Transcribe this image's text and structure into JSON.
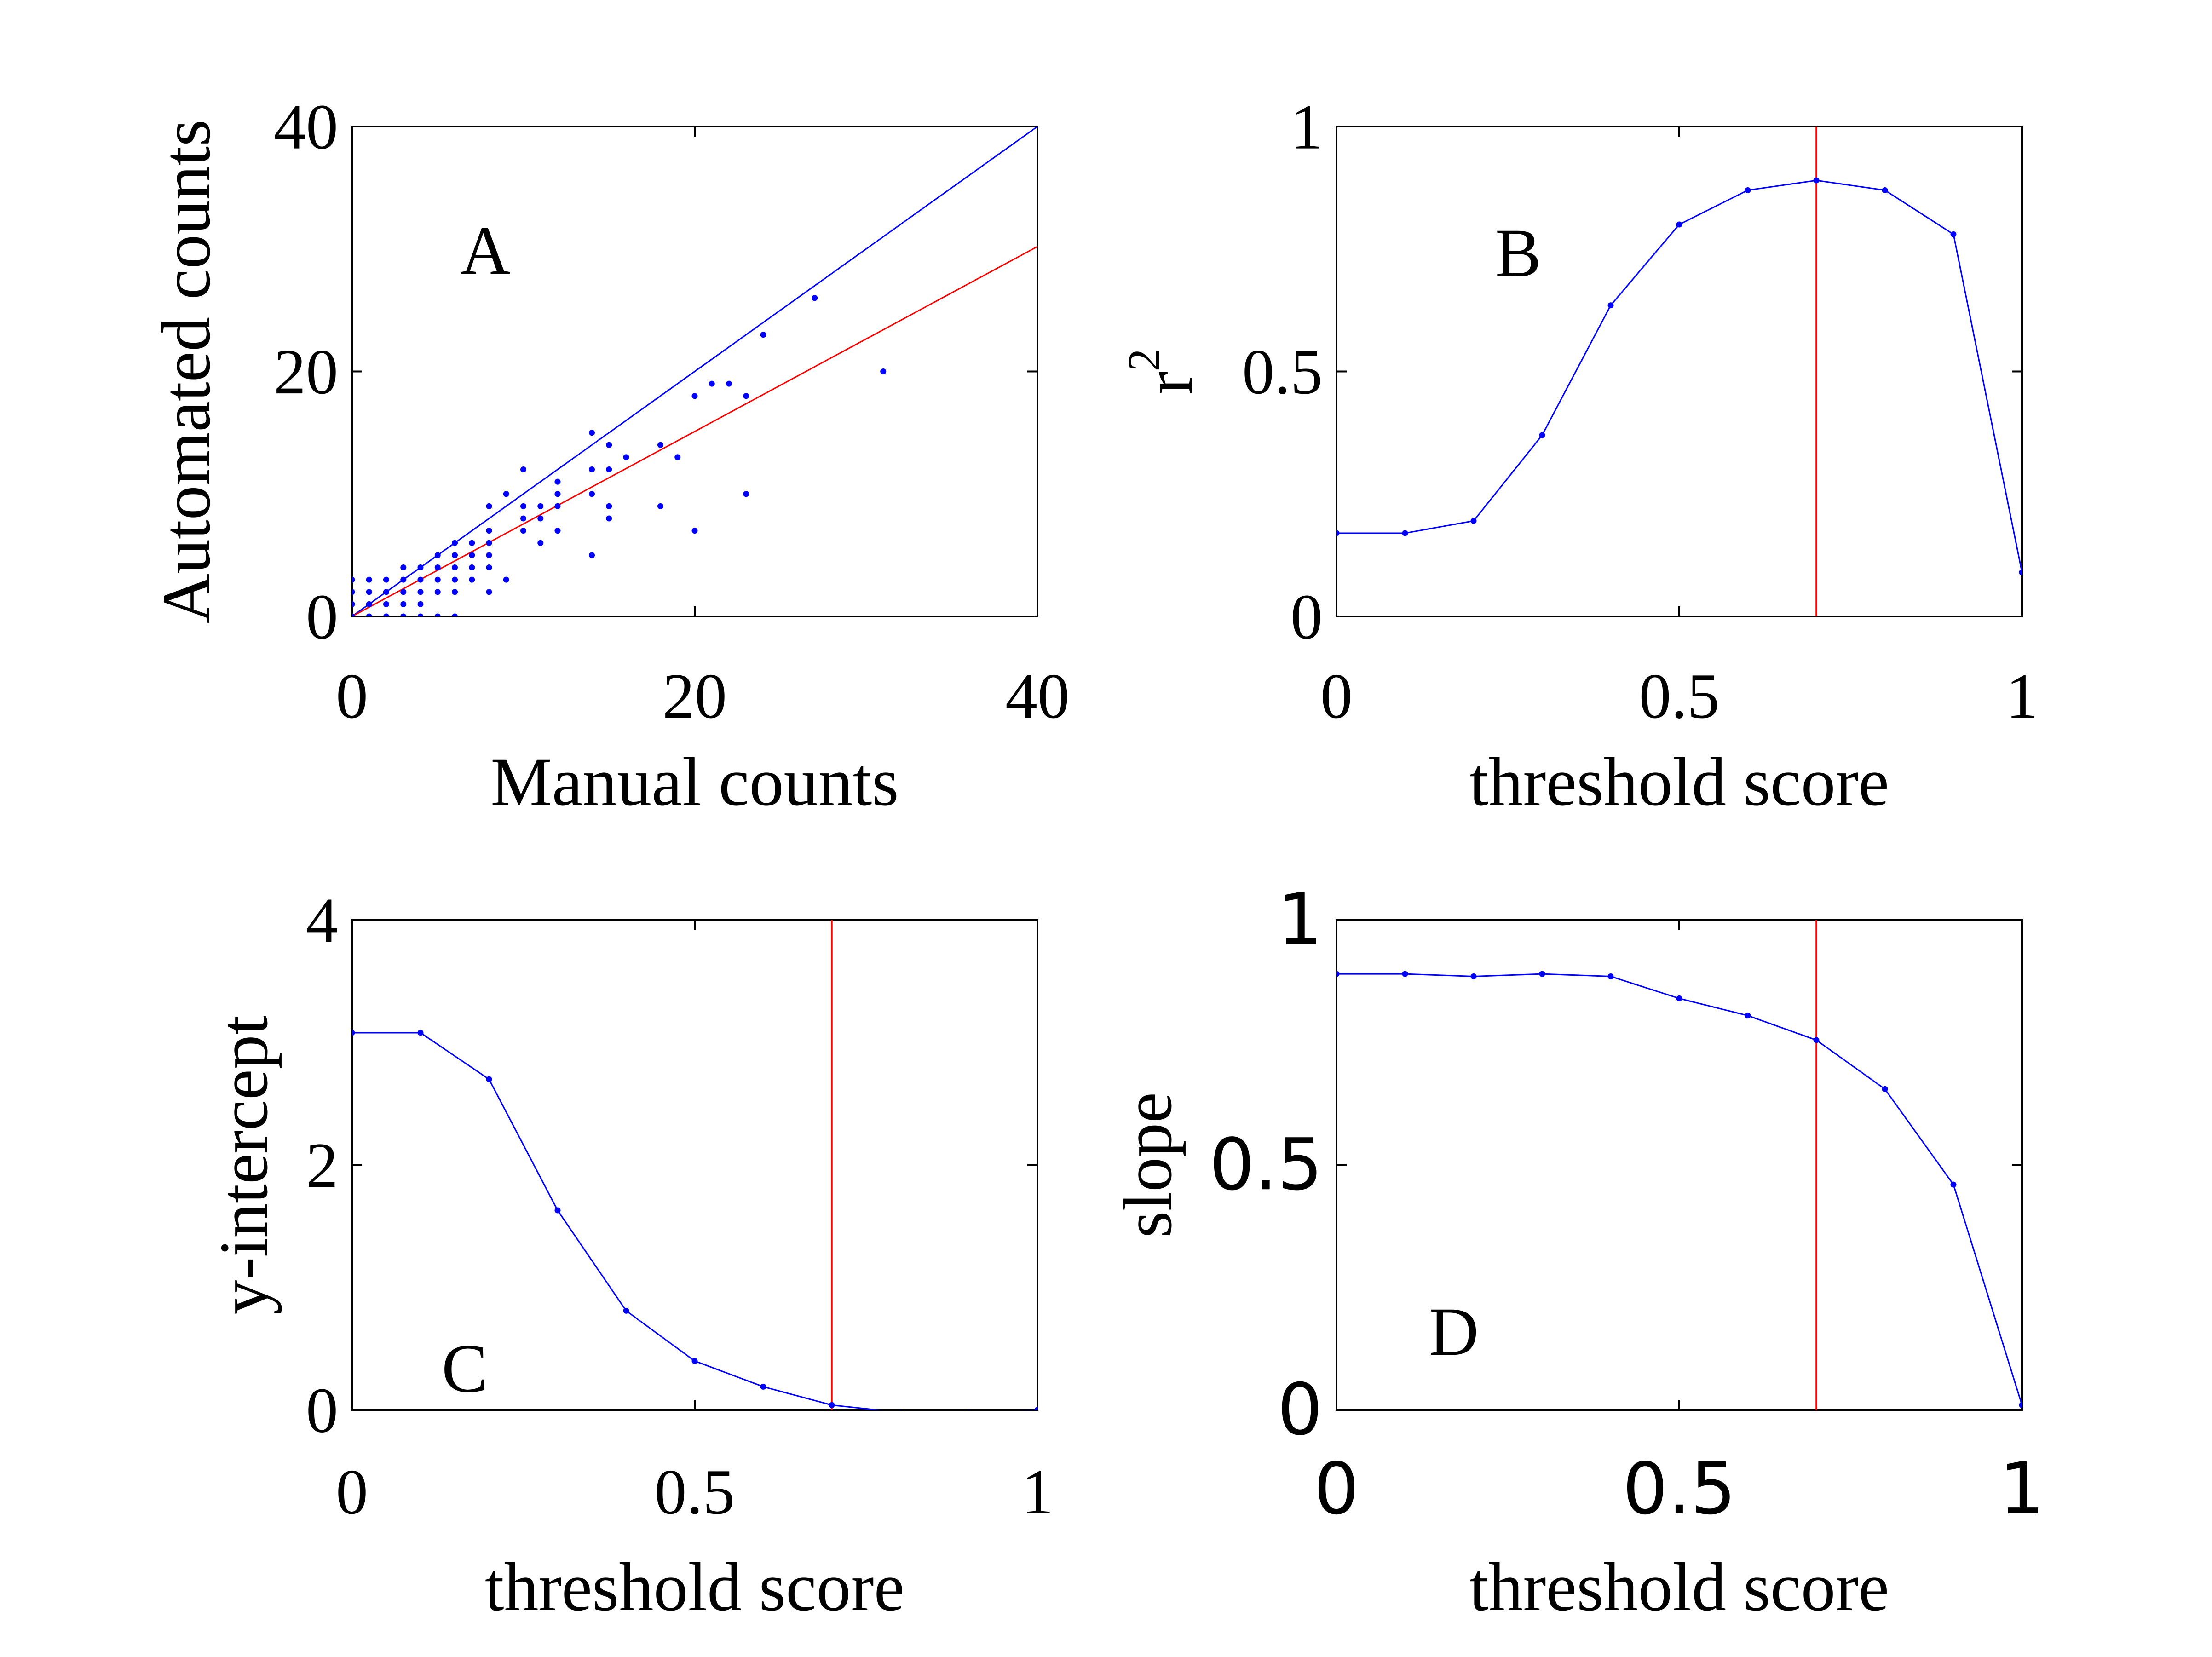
{
  "chart_data": [
    {
      "panel": "A",
      "type": "scatter",
      "panel_label": "A",
      "xlabel": "Manual counts",
      "ylabel": "Automated counts",
      "xlim": [
        0,
        40
      ],
      "ylim": [
        0,
        40
      ],
      "xticks": [
        "0",
        "20",
        "40"
      ],
      "yticks": [
        "0",
        "20",
        "40"
      ],
      "grid": false,
      "points": [
        [
          0,
          0
        ],
        [
          0,
          1
        ],
        [
          0,
          2
        ],
        [
          0,
          3
        ],
        [
          1,
          0
        ],
        [
          1,
          1
        ],
        [
          1,
          2
        ],
        [
          1,
          3
        ],
        [
          2,
          0
        ],
        [
          2,
          1
        ],
        [
          2,
          2
        ],
        [
          2,
          3
        ],
        [
          3,
          0
        ],
        [
          3,
          1
        ],
        [
          3,
          2
        ],
        [
          3,
          3
        ],
        [
          3,
          4
        ],
        [
          4,
          0
        ],
        [
          4,
          1
        ],
        [
          4,
          2
        ],
        [
          4,
          3
        ],
        [
          4,
          4
        ],
        [
          5,
          0
        ],
        [
          5,
          2
        ],
        [
          5,
          3
        ],
        [
          5,
          4
        ],
        [
          5,
          5
        ],
        [
          6,
          0
        ],
        [
          6,
          2
        ],
        [
          6,
          3
        ],
        [
          6,
          4
        ],
        [
          6,
          5
        ],
        [
          6,
          6
        ],
        [
          7,
          3
        ],
        [
          7,
          4
        ],
        [
          7,
          5
        ],
        [
          7,
          6
        ],
        [
          8,
          2
        ],
        [
          8,
          4
        ],
        [
          8,
          5
        ],
        [
          8,
          6
        ],
        [
          8,
          7
        ],
        [
          8,
          9
        ],
        [
          9,
          3
        ],
        [
          9,
          10
        ],
        [
          10,
          7
        ],
        [
          10,
          8
        ],
        [
          10,
          9
        ],
        [
          10,
          12
        ],
        [
          11,
          6
        ],
        [
          11,
          8
        ],
        [
          11,
          9
        ],
        [
          12,
          7
        ],
        [
          12,
          9
        ],
        [
          12,
          10
        ],
        [
          12,
          11
        ],
        [
          14,
          5
        ],
        [
          14,
          10
        ],
        [
          14,
          12
        ],
        [
          14,
          15
        ],
        [
          15,
          8
        ],
        [
          15,
          9
        ],
        [
          15,
          12
        ],
        [
          15,
          14
        ],
        [
          16,
          13
        ],
        [
          18,
          9
        ],
        [
          18,
          14
        ],
        [
          19,
          13
        ],
        [
          20,
          7
        ],
        [
          20,
          18
        ],
        [
          21,
          19
        ],
        [
          22,
          19
        ],
        [
          23,
          10
        ],
        [
          23,
          18
        ],
        [
          24,
          23
        ],
        [
          27,
          26
        ],
        [
          31,
          20
        ]
      ],
      "lines": [
        {
          "name": "",
          "color": "#0000ff",
          "x": [
            0,
            40
          ],
          "y": [
            0,
            40
          ]
        },
        {
          "name": "",
          "color": "#ff0000",
          "x": [
            0,
            40
          ],
          "y": [
            0,
            30.2
          ]
        }
      ]
    },
    {
      "panel": "B",
      "type": "line",
      "panel_label": "B",
      "xlabel": "threshold score",
      "ylabel": "r",
      "ylabel_sup": "2",
      "xlim": [
        0,
        1
      ],
      "ylim": [
        0,
        1
      ],
      "xticks": [
        "0",
        "0.5",
        "1"
      ],
      "yticks": [
        "0",
        "0.5",
        "1"
      ],
      "grid": false,
      "x": [
        0,
        0.1,
        0.2,
        0.3,
        0.4,
        0.5,
        0.6,
        0.7,
        0.8,
        0.9,
        1.0
      ],
      "y": [
        0.17,
        0.17,
        0.195,
        0.37,
        0.635,
        0.8,
        0.87,
        0.89,
        0.87,
        0.78,
        0.09
      ],
      "series_color": "#0000ff",
      "vline": {
        "x": 0.7,
        "color": "#ff0000"
      }
    },
    {
      "panel": "C",
      "type": "line",
      "panel_label": "C",
      "xlabel": "threshold score",
      "ylabel": "y-intercept",
      "xlim": [
        0,
        1
      ],
      "ylim": [
        0,
        4
      ],
      "xticks": [
        "0",
        "0.5",
        "1"
      ],
      "yticks": [
        "0",
        "2",
        "4"
      ],
      "grid": false,
      "x": [
        0,
        0.1,
        0.2,
        0.3,
        0.4,
        0.5,
        0.6,
        0.7,
        0.8,
        0.9,
        1.0
      ],
      "y": [
        3.08,
        3.08,
        2.7,
        1.63,
        0.81,
        0.4,
        0.19,
        0.04,
        -0.02,
        -0.02,
        0.0
      ],
      "series_color": "#0000ff",
      "vline": {
        "x": 0.7,
        "color": "#ff0000"
      }
    },
    {
      "panel": "D",
      "type": "line",
      "panel_label": "D",
      "xlabel": "threshold score",
      "ylabel": "slope",
      "xlim": [
        0,
        1
      ],
      "ylim": [
        0,
        1
      ],
      "xticks": [
        "0",
        "0.5",
        "1"
      ],
      "yticks": [
        "0",
        "0.5",
        "1"
      ],
      "grid": false,
      "x": [
        0,
        0.1,
        0.2,
        0.3,
        0.4,
        0.5,
        0.6,
        0.7,
        0.8,
        0.9,
        1.0
      ],
      "y": [
        0.89,
        0.89,
        0.885,
        0.89,
        0.885,
        0.84,
        0.805,
        0.755,
        0.655,
        0.46,
        0.01
      ],
      "series_color": "#0000ff",
      "vline": {
        "x": 0.7,
        "color": "#ff0000"
      }
    }
  ]
}
